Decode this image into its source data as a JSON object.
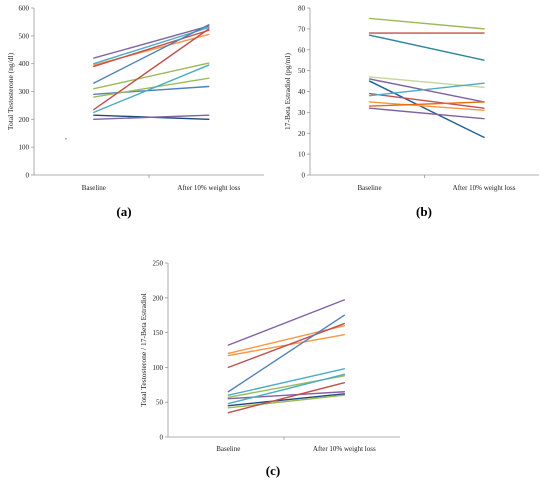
{
  "chart_data": [
    {
      "type": "line",
      "caption": "(a)",
      "ylabel": "Total Testosterone  (ng/dl)",
      "categories": [
        "Baseline",
        "After 10% weight loss"
      ],
      "ylim": [
        0,
        600
      ],
      "yticks": [
        0,
        100,
        200,
        300,
        400,
        500,
        600
      ],
      "grid": false,
      "isolated_point": {
        "x": "Baseline",
        "y": 122,
        "label": "’"
      },
      "series": [
        {
          "values": [
            420,
            535
          ],
          "color": "#8064a2"
        },
        {
          "values": [
            400,
            530
          ],
          "color": "#4bacc6"
        },
        {
          "values": [
            395,
            505
          ],
          "color": "#f79646"
        },
        {
          "values": [
            390,
            520
          ],
          "color": "#c0504d"
        },
        {
          "values": [
            330,
            540
          ],
          "color": "#4f81bd"
        },
        {
          "values": [
            310,
            402
          ],
          "color": "#9bbb59"
        },
        {
          "values": [
            290,
            318
          ],
          "color": "#4f81bd"
        },
        {
          "values": [
            280,
            348
          ],
          "color": "#9bbb59"
        },
        {
          "values": [
            235,
            525
          ],
          "color": "#c0504d"
        },
        {
          "values": [
            225,
            395
          ],
          "color": "#4bacc6"
        },
        {
          "values": [
            215,
            200
          ],
          "color": "#1f497d"
        },
        {
          "values": [
            200,
            215
          ],
          "color": "#8064a2"
        }
      ]
    },
    {
      "type": "line",
      "caption": "(b)",
      "ylabel": "17-Beta Estradiol (pg/ml)",
      "categories": [
        "Baseline",
        "After 10% weight loss"
      ],
      "ylim": [
        0,
        80
      ],
      "yticks": [
        0,
        10,
        20,
        30,
        40,
        50,
        60,
        70,
        80
      ],
      "grid": false,
      "series": [
        {
          "values": [
            75,
            70
          ],
          "color": "#9bbb59"
        },
        {
          "values": [
            68,
            68
          ],
          "color": "#c0504d"
        },
        {
          "values": [
            67,
            55
          ],
          "color": "#31859c"
        },
        {
          "values": [
            47,
            42
          ],
          "color": "#c3d69b"
        },
        {
          "values": [
            46,
            35
          ],
          "color": "#8064a2"
        },
        {
          "values": [
            45,
            18
          ],
          "color": "#1f5f99"
        },
        {
          "values": [
            39,
            32
          ],
          "color": "#c0504d"
        },
        {
          "values": [
            38,
            44
          ],
          "color": "#4bacc6"
        },
        {
          "values": [
            35,
            31
          ],
          "color": "#f79646"
        },
        {
          "values": [
            33,
            35
          ],
          "color": "#e46c0a"
        },
        {
          "values": [
            32,
            27
          ],
          "color": "#8064a2"
        }
      ]
    },
    {
      "type": "line",
      "caption": "(c)",
      "ylabel": "Total Testosterone / 17-Beta Estradiol",
      "categories": [
        "Baseline",
        "After 10% weight loss"
      ],
      "ylim": [
        0,
        250
      ],
      "yticks": [
        0,
        50,
        100,
        150,
        200,
        250
      ],
      "grid": false,
      "series": [
        {
          "values": [
            132,
            197
          ],
          "color": "#8064a2"
        },
        {
          "values": [
            120,
            160
          ],
          "color": "#f79646"
        },
        {
          "values": [
            117,
            147
          ],
          "color": "#f79646"
        },
        {
          "values": [
            100,
            163
          ],
          "color": "#c0504d"
        },
        {
          "values": [
            65,
            175
          ],
          "color": "#4f81bd"
        },
        {
          "values": [
            60,
            98
          ],
          "color": "#4bacc6"
        },
        {
          "values": [
            57,
            88
          ],
          "color": "#9bbb59"
        },
        {
          "values": [
            55,
            65
          ],
          "color": "#8064a2"
        },
        {
          "values": [
            48,
            90
          ],
          "color": "#4bacc6"
        },
        {
          "values": [
            45,
            62
          ],
          "color": "#1f497d"
        },
        {
          "values": [
            42,
            60
          ],
          "color": "#9bbb59"
        },
        {
          "values": [
            35,
            78
          ],
          "color": "#c0504d"
        }
      ]
    }
  ]
}
